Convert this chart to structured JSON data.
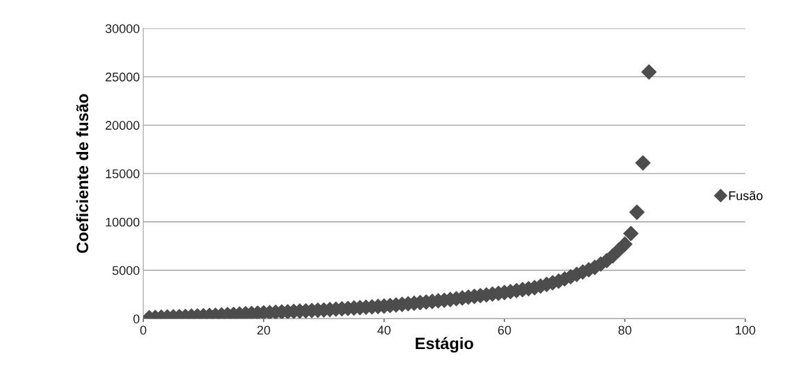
{
  "chart_data": {
    "type": "scatter",
    "xlabel": "Estágio",
    "ylabel": "Coeficiente de fusão",
    "xlim": [
      0,
      100
    ],
    "xticks": [
      0,
      20,
      40,
      60,
      80,
      100
    ],
    "ylim": [
      0,
      30000
    ],
    "yticks": [
      0,
      5000,
      10000,
      15000,
      20000,
      25000,
      30000
    ],
    "grid": "y",
    "legend": "right",
    "marker": "diamond",
    "series": [
      {
        "name": "Fusão",
        "color": "#4d4d4d",
        "x": [
          1,
          2,
          3,
          4,
          5,
          6,
          7,
          8,
          9,
          10,
          11,
          12,
          13,
          14,
          15,
          16,
          17,
          18,
          19,
          20,
          21,
          22,
          23,
          24,
          25,
          26,
          27,
          28,
          29,
          30,
          31,
          32,
          33,
          34,
          35,
          36,
          37,
          38,
          39,
          40,
          41,
          42,
          43,
          44,
          45,
          46,
          47,
          48,
          49,
          50,
          51,
          52,
          53,
          54,
          55,
          56,
          57,
          58,
          59,
          60,
          61,
          62,
          63,
          64,
          65,
          66,
          67,
          68,
          69,
          70,
          71,
          72,
          73,
          74,
          75,
          76,
          77,
          78,
          79,
          80,
          81,
          82,
          83,
          84
        ],
        "values": [
          100,
          120,
          150,
          170,
          190,
          210,
          230,
          260,
          280,
          300,
          330,
          360,
          390,
          420,
          450,
          480,
          510,
          540,
          570,
          600,
          630,
          660,
          690,
          720,
          750,
          780,
          810,
          840,
          870,
          900,
          940,
          980,
          1020,
          1060,
          1100,
          1140,
          1180,
          1220,
          1260,
          1300,
          1360,
          1420,
          1480,
          1540,
          1600,
          1660,
          1720,
          1780,
          1840,
          1900,
          1980,
          2060,
          2140,
          2220,
          2300,
          2380,
          2460,
          2540,
          2620,
          2700,
          2800,
          2900,
          3000,
          3100,
          3200,
          3370,
          3540,
          3710,
          3880,
          4100,
          4340,
          4580,
          4820,
          5060,
          5300,
          5650,
          6000,
          6500,
          7100,
          7700,
          8800,
          11000,
          16100,
          25500
        ]
      }
    ]
  }
}
